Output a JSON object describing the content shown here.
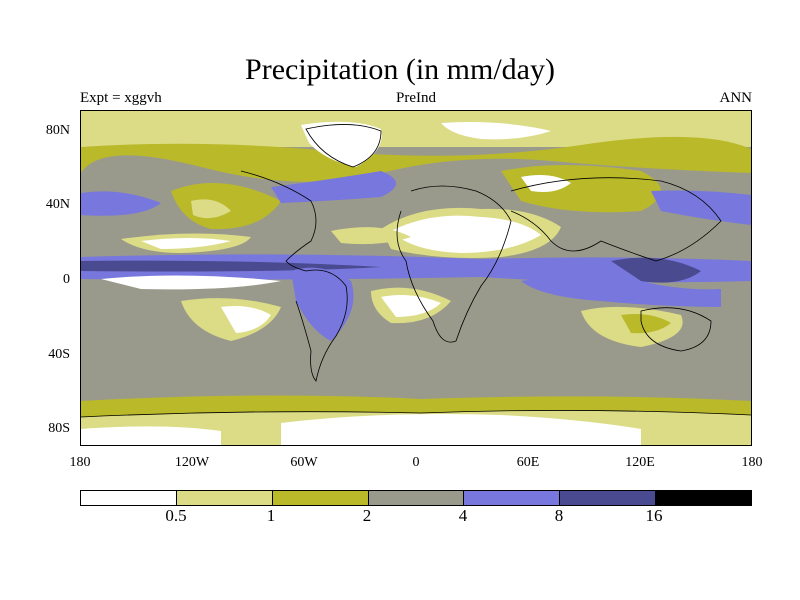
{
  "title": "Precipitation (in mm/day)",
  "subtitle_left": "Expt = xggvh",
  "subtitle_center": "PreInd",
  "subtitle_right": "ANN",
  "map": {
    "projection": "cylindrical-equidistant",
    "lat_ticks": [
      "80N",
      "40N",
      "0",
      "40S",
      "80S"
    ],
    "lon_ticks": [
      "180",
      "120W",
      "60W",
      "0",
      "60E",
      "120E",
      "180"
    ],
    "background_class": "2-4"
  },
  "colorbar": {
    "colors": [
      "#ffffff",
      "#dcdc86",
      "#b9b92a",
      "#9a9a8c",
      "#7777dd",
      "#4a4a90",
      "#000000"
    ],
    "levels": [
      "0.5",
      "1",
      "2",
      "4",
      "8",
      "16"
    ]
  }
}
